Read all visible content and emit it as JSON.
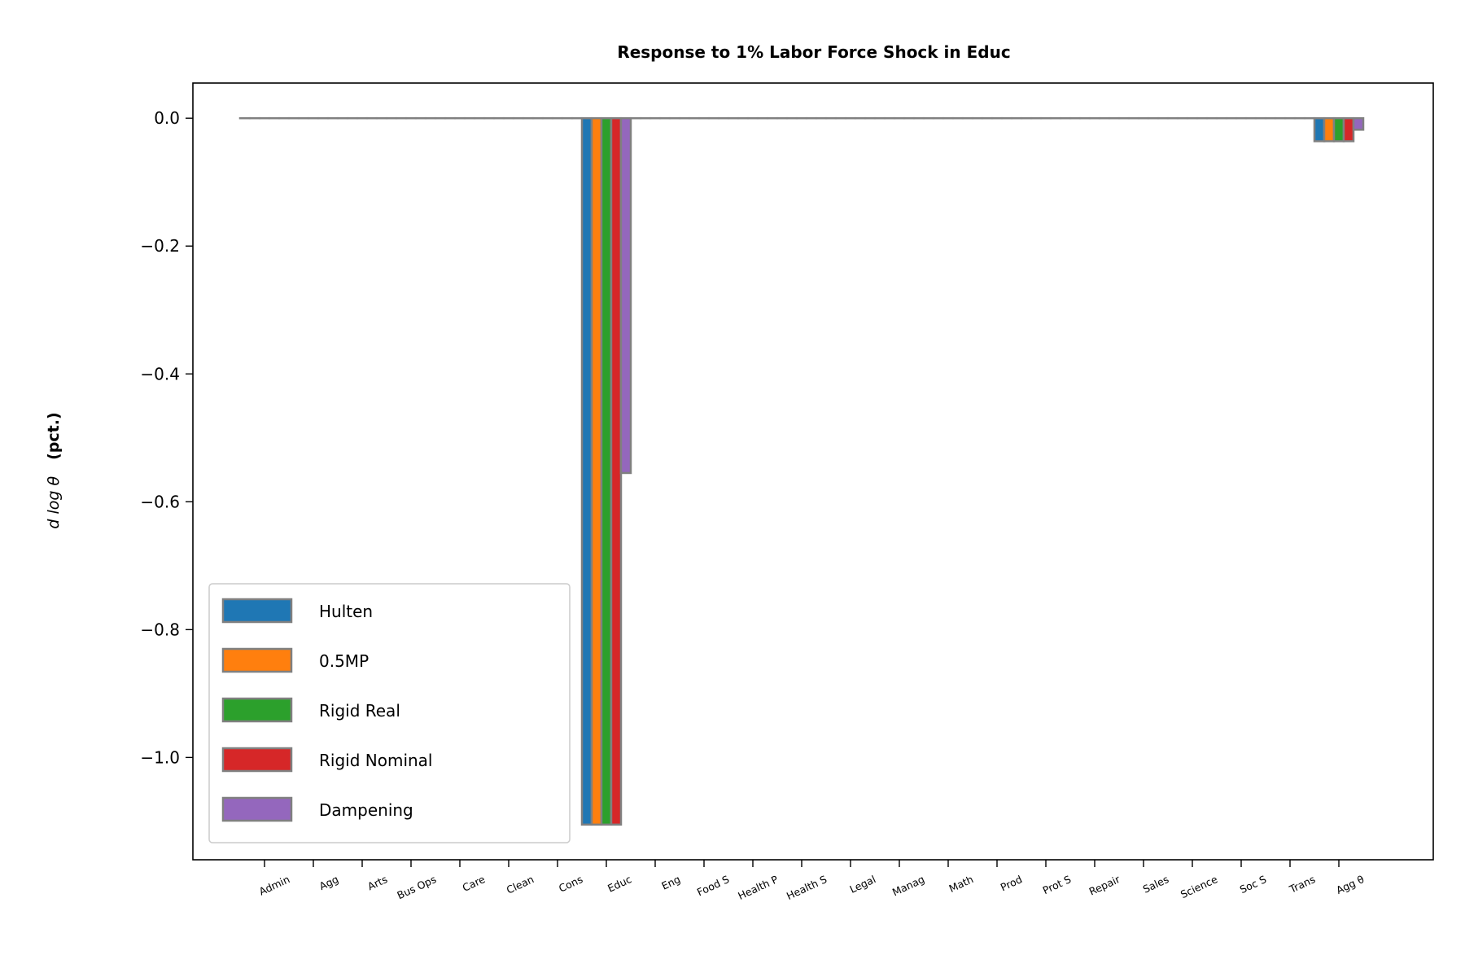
{
  "chart_data": {
    "type": "bar",
    "title": "Response to 1% Labor Force Shock in Educ",
    "ylabel_math": "d log θ",
    "ylabel_unit": "(pct.)",
    "xlabel": "",
    "ylim": [
      -1.16,
      0.055
    ],
    "yticks": [
      0.0,
      -0.2,
      -0.4,
      -0.6,
      -0.8,
      -1.0
    ],
    "ytick_labels": [
      "0.0",
      "−0.2",
      "−0.4",
      "−0.6",
      "−0.8",
      "−1.0"
    ],
    "categories": [
      "Admin",
      "Agg",
      "Arts",
      "Bus Ops",
      "Care",
      "Clean",
      "Cons",
      "Educ",
      "Eng",
      "Food S",
      "Health P",
      "Health S",
      "Legal",
      "Manag",
      "Math",
      "Prod",
      "Prot S",
      "Repair",
      "Sales",
      "Science",
      "Soc S",
      "Trans",
      "Agg θ"
    ],
    "series": [
      {
        "name": "Hulten",
        "color": "#1f77b4",
        "values": [
          0,
          0,
          0,
          0,
          0,
          0,
          0,
          -1.105,
          0,
          0,
          0,
          0,
          0,
          0,
          0,
          0,
          0,
          0,
          0,
          0,
          0,
          0,
          -0.036
        ]
      },
      {
        "name": "0.5MP",
        "color": "#ff7f0e",
        "values": [
          0,
          0,
          0,
          0,
          0,
          0,
          0,
          -1.105,
          0,
          0,
          0,
          0,
          0,
          0,
          0,
          0,
          0,
          0,
          0,
          0,
          0,
          0,
          -0.036
        ]
      },
      {
        "name": "Rigid Real",
        "color": "#2ca02c",
        "values": [
          0,
          0,
          0,
          0,
          0,
          0,
          0,
          -1.105,
          0,
          0,
          0,
          0,
          0,
          0,
          0,
          0,
          0,
          0,
          0,
          0,
          0,
          0,
          -0.036
        ]
      },
      {
        "name": "Rigid Nominal",
        "color": "#d62728",
        "values": [
          0,
          0,
          0,
          0,
          0,
          0,
          0,
          -1.105,
          0,
          0,
          0,
          0,
          0,
          0,
          0,
          0,
          0,
          0,
          0,
          0,
          0,
          0,
          -0.036
        ]
      },
      {
        "name": "Dampening",
        "color": "#9467bd",
        "values": [
          0,
          0,
          0,
          0,
          0,
          0,
          0,
          -0.555,
          0,
          0,
          0,
          0,
          0,
          0,
          0,
          0,
          0,
          0,
          0,
          0,
          0,
          0,
          -0.018
        ]
      }
    ],
    "bar_edge_color": "#808080",
    "grid": false,
    "legend_position": "lower-left"
  }
}
